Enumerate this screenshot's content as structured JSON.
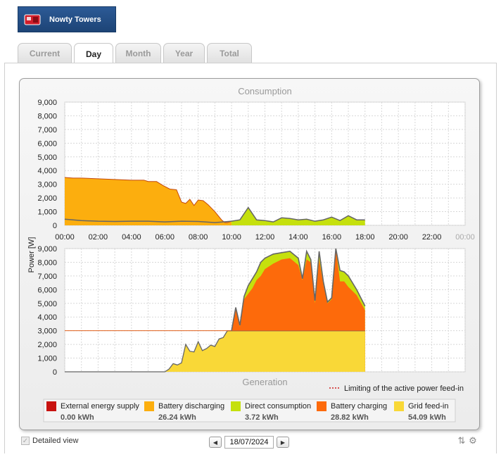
{
  "header": {
    "plant_name": "Nowty Towers"
  },
  "tabs": [
    {
      "label": "Current",
      "active": false
    },
    {
      "label": "Day",
      "active": true
    },
    {
      "label": "Month",
      "active": false
    },
    {
      "label": "Year",
      "active": false
    },
    {
      "label": "Total",
      "active": false
    }
  ],
  "chart_data": [
    {
      "type": "area",
      "title": "Consumption",
      "ylabel": "Power [W]",
      "ylim": [
        0,
        9000
      ],
      "yticks": [
        "0",
        "1,000",
        "2,000",
        "3,000",
        "4,000",
        "5,000",
        "6,000",
        "7,000",
        "8,000",
        "9,000"
      ],
      "xlim": [
        "00:00",
        "24:00"
      ],
      "xticks": [
        "00:00",
        "02:00",
        "04:00",
        "06:00",
        "08:00",
        "10:00",
        "12:00",
        "14:00",
        "16:00",
        "18:00",
        "20:00",
        "22:00",
        "00:00"
      ],
      "series": [
        {
          "name": "Battery discharging",
          "color": "#fcae0e",
          "x": [
            0.0,
            0.5,
            1.0,
            2.0,
            3.0,
            4.0,
            4.75,
            5.0,
            5.5,
            5.9,
            6.3,
            6.7,
            7.0,
            7.25,
            7.5,
            7.75,
            8.0,
            8.3,
            8.6,
            9.0,
            9.4,
            9.6,
            9.75,
            10.0
          ],
          "values": [
            3500,
            3450,
            3450,
            3400,
            3350,
            3300,
            3300,
            3200,
            3200,
            2900,
            2650,
            2600,
            1700,
            1600,
            1900,
            1450,
            1850,
            1800,
            1500,
            1000,
            400,
            200,
            200,
            300
          ]
        },
        {
          "name": "Direct consumption",
          "color": "#c5e00d",
          "x": [
            10.0,
            10.5,
            11.0,
            11.5,
            12.0,
            12.5,
            13.0,
            13.5,
            14.0,
            14.5,
            15.0,
            15.5,
            16.0,
            16.5,
            17.0,
            17.5,
            18.0
          ],
          "values": [
            300,
            400,
            1300,
            400,
            350,
            250,
            550,
            500,
            400,
            450,
            300,
            400,
            600,
            350,
            700,
            400,
            400
          ]
        },
        {
          "name": "Total consumption",
          "color": "#666666",
          "x": [
            0.0,
            0.5,
            1.0,
            2.0,
            3.0,
            4.0,
            5.0,
            6.0,
            7.0,
            8.0,
            9.0,
            10.0
          ],
          "values": [
            450,
            400,
            350,
            300,
            280,
            300,
            300,
            250,
            300,
            280,
            200,
            300
          ]
        }
      ]
    },
    {
      "type": "area",
      "title": "Generation",
      "ylabel": "Power [W]",
      "ylim": [
        0,
        9000
      ],
      "yticks": [
        "0",
        "1,000",
        "2,000",
        "3,000",
        "4,000",
        "5,000",
        "6,000",
        "7,000",
        "8,000",
        "9,000"
      ],
      "xlim": [
        "00:00",
        "24:00"
      ],
      "annotation": "Limiting of the active power feed-in",
      "series": [
        {
          "name": "Grid feed-in",
          "color": "#f9d837",
          "x": [
            0.0,
            6.0,
            6.25,
            6.5,
            6.75,
            7.0,
            7.25,
            7.5,
            7.75,
            8.0,
            8.25,
            8.5,
            8.75,
            9.0,
            9.25,
            9.5,
            9.75,
            10.0,
            18.0
          ],
          "values": [
            0,
            0,
            200,
            600,
            500,
            650,
            2000,
            1500,
            1450,
            2200,
            1550,
            1700,
            1950,
            1850,
            2400,
            2500,
            3000,
            3000,
            3000
          ]
        },
        {
          "name": "Battery charging",
          "color": "#fd6a0b",
          "x": [
            10.0,
            10.25,
            10.5,
            10.75,
            11.0,
            11.25,
            11.5,
            11.75,
            12.0,
            12.5,
            13.0,
            13.5,
            14.0,
            14.25,
            14.5,
            14.75,
            15.0,
            15.25,
            15.5,
            15.75,
            16.0,
            16.25,
            16.5,
            16.75,
            17.0,
            17.5,
            18.0
          ],
          "values": [
            3000,
            4600,
            3300,
            5300,
            5700,
            6100,
            6700,
            7000,
            7500,
            7900,
            8200,
            8300,
            7800,
            6700,
            8200,
            8000,
            5000,
            8200,
            6400,
            5000,
            5300,
            9000,
            6600,
            6600,
            6200,
            5600,
            4500
          ]
        },
        {
          "name": "Total generation",
          "color": "#666666",
          "x": [
            10.0,
            10.25,
            10.5,
            10.75,
            11.0,
            11.25,
            11.5,
            11.75,
            12.0,
            12.5,
            13.0,
            13.5,
            14.0,
            14.25,
            14.5,
            14.75,
            15.0,
            15.25,
            15.5,
            15.75,
            16.0,
            16.25,
            16.5,
            16.75,
            17.0,
            17.5,
            18.0
          ],
          "values": [
            3000,
            4700,
            3400,
            5500,
            6300,
            6800,
            7300,
            8000,
            8300,
            8600,
            8700,
            8800,
            8300,
            6800,
            8800,
            8200,
            5200,
            8800,
            6600,
            5100,
            5400,
            9000,
            7400,
            7300,
            7000,
            6000,
            4800
          ]
        }
      ]
    }
  ],
  "legend": [
    {
      "label": "External energy supply",
      "value": "0.00 kWh",
      "color": "#c8120f"
    },
    {
      "label": "Battery discharging",
      "value": "26.24 kWh",
      "color": "#fcae0e"
    },
    {
      "label": "Direct consumption",
      "value": "3.72 kWh",
      "color": "#c5e00d"
    },
    {
      "label": "Battery charging",
      "value": "28.82 kWh",
      "color": "#fd6a0b"
    },
    {
      "label": "Grid feed-in",
      "value": "54.09 kWh",
      "color": "#f9d837"
    }
  ],
  "footer": {
    "detailed_view_label": "Detailed view",
    "detailed_view_checked": true,
    "date": "18/07/2024",
    "prev_icon": "chevron-left-icon",
    "next_icon": "chevron-right-icon"
  }
}
